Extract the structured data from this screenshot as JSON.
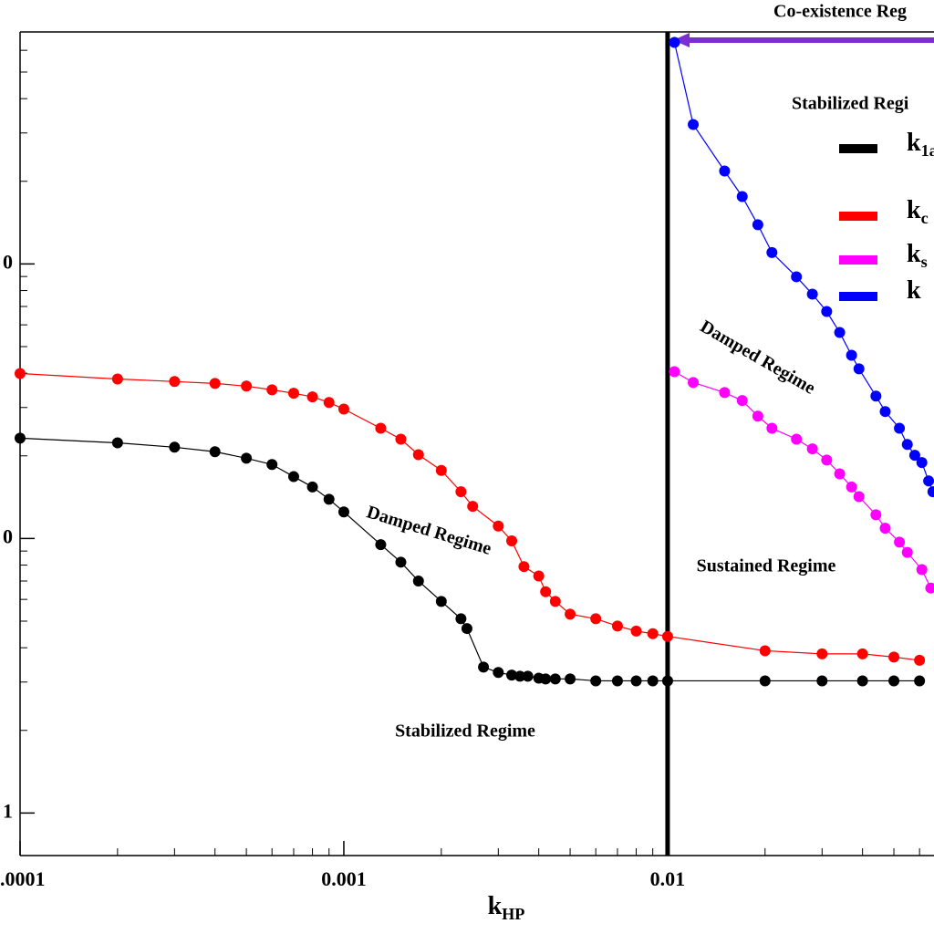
{
  "chart_data": {
    "type": "line",
    "xlabel": "kHP",
    "xscale": "log",
    "yscale": "log",
    "xlim": [
      0.0001,
      0.0665
    ],
    "ylim": [
      0.7,
      700
    ],
    "xticks": [
      {
        "value": 0.0001,
        "label": ".0001"
      },
      0.001,
      0.01
    ],
    "yticks": [
      {
        "value": 100,
        "label": "0"
      },
      {
        "value": 10,
        "label": "0"
      },
      1
    ],
    "vertical_line_x": 0.01,
    "annotations": [
      "Co-existence Reg",
      "Stabilized Regi",
      "Damped Regime",
      "Damped Regime",
      "Sustained Regime",
      "Stabilized Regime"
    ],
    "series": [
      {
        "name": "k1a",
        "color": "#000000",
        "x": [
          0.0001,
          0.0002,
          0.0003,
          0.0004,
          0.0005,
          0.0006,
          0.0007,
          0.0008,
          0.0009,
          0.001,
          0.0013,
          0.0015,
          0.0017,
          0.002,
          0.0023,
          0.0024,
          0.0027,
          0.003,
          0.0033,
          0.0035,
          0.0037,
          0.004,
          0.0042,
          0.0045,
          0.005,
          0.006,
          0.007,
          0.008,
          0.009,
          0.01,
          0.02,
          0.03,
          0.04,
          0.05,
          0.06
        ],
        "values": [
          23.2,
          22.3,
          21.5,
          20.7,
          19.6,
          18.6,
          16.8,
          15.4,
          13.9,
          12.5,
          9.5,
          8.2,
          7.0,
          5.9,
          5.1,
          4.7,
          3.4,
          3.25,
          3.18,
          3.15,
          3.15,
          3.1,
          3.08,
          3.08,
          3.08,
          3.03,
          3.03,
          3.03,
          3.03,
          3.03,
          3.03,
          3.03,
          3.03,
          3.03,
          3.03
        ]
      },
      {
        "name": "kc",
        "color": "#ff0000",
        "x": [
          0.0001,
          0.0002,
          0.0003,
          0.0004,
          0.0005,
          0.0006,
          0.0007,
          0.0008,
          0.0009,
          0.001,
          0.0013,
          0.0015,
          0.0017,
          0.002,
          0.0023,
          0.0025,
          0.003,
          0.0033,
          0.0036,
          0.004,
          0.0042,
          0.0045,
          0.005,
          0.006,
          0.007,
          0.008,
          0.009,
          0.01,
          0.02,
          0.03,
          0.04,
          0.05,
          0.06
        ],
        "values": [
          39.9,
          38.1,
          37.3,
          36.7,
          35.9,
          34.8,
          33.8,
          32.8,
          31.3,
          29.6,
          25.2,
          23.0,
          20.2,
          17.7,
          14.8,
          13.1,
          11.1,
          9.8,
          7.9,
          7.3,
          6.4,
          5.9,
          5.3,
          5.1,
          4.8,
          4.6,
          4.5,
          4.4,
          3.9,
          3.8,
          3.8,
          3.7,
          3.6
        ]
      },
      {
        "name": "ks",
        "color": "#ff00ff",
        "x": [
          0.0105,
          0.012,
          0.015,
          0.017,
          0.019,
          0.021,
          0.025,
          0.028,
          0.031,
          0.034,
          0.037,
          0.039,
          0.044,
          0.047,
          0.052,
          0.055,
          0.061,
          0.065
        ],
        "values": [
          40.5,
          37.0,
          34.0,
          31.8,
          27.9,
          25.2,
          23.0,
          21.2,
          19.3,
          17.2,
          15.4,
          14.2,
          12.2,
          10.9,
          9.7,
          8.9,
          7.7,
          6.6
        ]
      },
      {
        "name": "k",
        "color": "#0000ff",
        "x": [
          0.0105,
          0.012,
          0.015,
          0.017,
          0.019,
          0.021,
          0.025,
          0.028,
          0.031,
          0.034,
          0.037,
          0.039,
          0.044,
          0.047,
          0.052,
          0.055,
          0.058,
          0.061,
          0.064,
          0.066
        ],
        "values": [
          641,
          322,
          218,
          176,
          139,
          110,
          89.8,
          77.6,
          67.1,
          56.3,
          46.5,
          41.5,
          33.0,
          29.0,
          25.2,
          22.0,
          20.1,
          18.9,
          16.2,
          14.8
        ]
      }
    ]
  }
}
